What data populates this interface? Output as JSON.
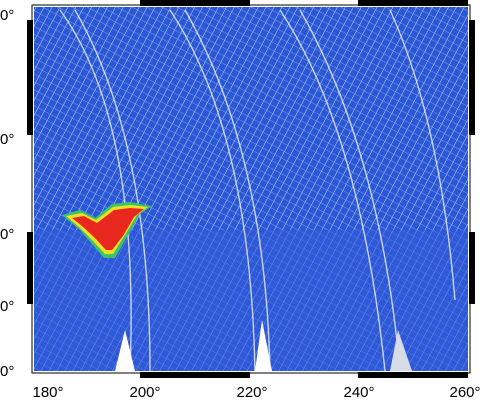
{
  "map": {
    "x_labels": [
      "180°",
      "200°",
      "220°",
      "240°",
      "260°"
    ],
    "y_labels": [
      "0°",
      "0°",
      "0°",
      "0°",
      "0°"
    ]
  }
}
